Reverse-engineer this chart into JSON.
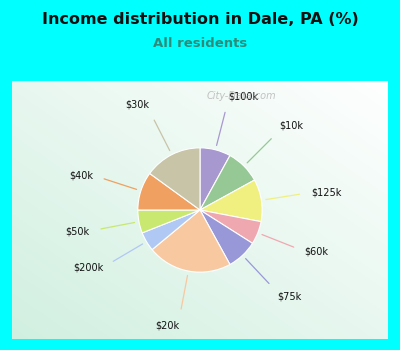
{
  "title": "Income distribution in Dale, PA (%)",
  "subtitle": "All residents",
  "title_color": "#111111",
  "subtitle_color": "#2e8b7a",
  "background_color": "#00ffff",
  "watermark": "City-Data.com",
  "slices": [
    {
      "label": "$100k",
      "value": 8,
      "color": "#a898d0"
    },
    {
      "label": "$10k",
      "value": 9,
      "color": "#96c896"
    },
    {
      "label": "$125k",
      "value": 11,
      "color": "#f0f080"
    },
    {
      "label": "$60k",
      "value": 6,
      "color": "#f0a8b0"
    },
    {
      "label": "$75k",
      "value": 8,
      "color": "#9898d8"
    },
    {
      "label": "$20k",
      "value": 22,
      "color": "#f8c8a0"
    },
    {
      "label": "$200k",
      "value": 5,
      "color": "#b0c8f4"
    },
    {
      "label": "$50k",
      "value": 6,
      "color": "#c8e870"
    },
    {
      "label": "$40k",
      "value": 10,
      "color": "#f0a060"
    },
    {
      "label": "$30k",
      "value": 15,
      "color": "#c8c4a8"
    }
  ],
  "figsize": [
    4.0,
    3.5
  ],
  "dpi": 100
}
